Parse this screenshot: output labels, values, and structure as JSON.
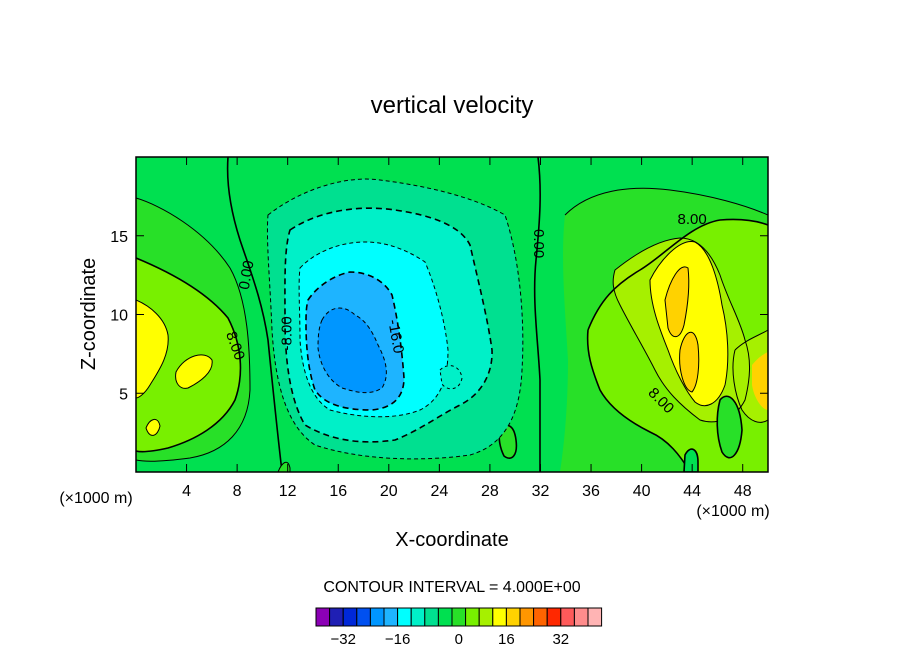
{
  "chart_data": {
    "type": "contour",
    "title": "vertical velocity",
    "xlabel": "X-coordinate",
    "ylabel": "Z-coordinate",
    "x_unit": "(×1000 m)",
    "z_unit": "(×1000 m)",
    "xlim": [
      0,
      50
    ],
    "ylim": [
      0,
      20
    ],
    "x_ticks": [
      4,
      8,
      12,
      16,
      20,
      24,
      28,
      32,
      36,
      40,
      44,
      48
    ],
    "y_ticks": [
      5,
      10,
      15
    ],
    "contour_interval_text": "CONTOUR INTERVAL = 4.000E+00",
    "contour_labels": [
      {
        "text": "0.00",
        "x": 8.8,
        "z": 12.5,
        "rotation": -80
      },
      {
        "text": "-8.00",
        "x": 12.0,
        "z": 8.8,
        "rotation": -90
      },
      {
        "text": "-16.0",
        "x": 20.5,
        "z": 8.6,
        "rotation": 80
      },
      {
        "text": "0.00",
        "x": 31.8,
        "z": 14.5,
        "rotation": 90
      },
      {
        "text": "8.00",
        "x": 7.8,
        "z": 8.0,
        "rotation": 70
      },
      {
        "text": "8.00",
        "x": 44.0,
        "z": 16.0,
        "rotation": 0
      },
      {
        "text": "8.00",
        "x": 41.5,
        "z": 4.5,
        "rotation": 45
      }
    ],
    "colorbar": {
      "levels": [
        -36,
        -32,
        -28,
        -24,
        -20,
        -16,
        -12,
        -8,
        -4,
        0,
        4,
        8,
        12,
        16,
        20,
        24,
        28,
        32,
        36
      ],
      "colors": [
        "#8b00b5",
        "#1f1fb4",
        "#0028d8",
        "#0050f0",
        "#0096ff",
        "#1eb4ff",
        "#00ffff",
        "#00f0c8",
        "#00e090",
        "#00e050",
        "#28e028",
        "#78f000",
        "#a6f000",
        "#ffff00",
        "#ffd200",
        "#ff9600",
        "#ff6400",
        "#ff2800",
        "#ff5a5a",
        "#ff8c8c",
        "#ffb4b4"
      ],
      "tick_labels": [
        "-32",
        "-16",
        "0",
        "16",
        "32"
      ],
      "tick_values": [
        -32,
        -16,
        0,
        16,
        32
      ]
    },
    "background_color": "#00e050",
    "fields": [
      {
        "sign": "negative",
        "min": -24,
        "center_x": 17.5,
        "center_z": 8.0
      },
      {
        "sign": "positive",
        "max": 20,
        "center_x": 1.5,
        "center_z": 8.0
      },
      {
        "sign": "positive",
        "max": 20,
        "center_x": 43.5,
        "center_z": 10.0
      },
      {
        "sign": "positive",
        "max": 24,
        "center_x": 49.5,
        "center_z": 6.0
      }
    ]
  }
}
